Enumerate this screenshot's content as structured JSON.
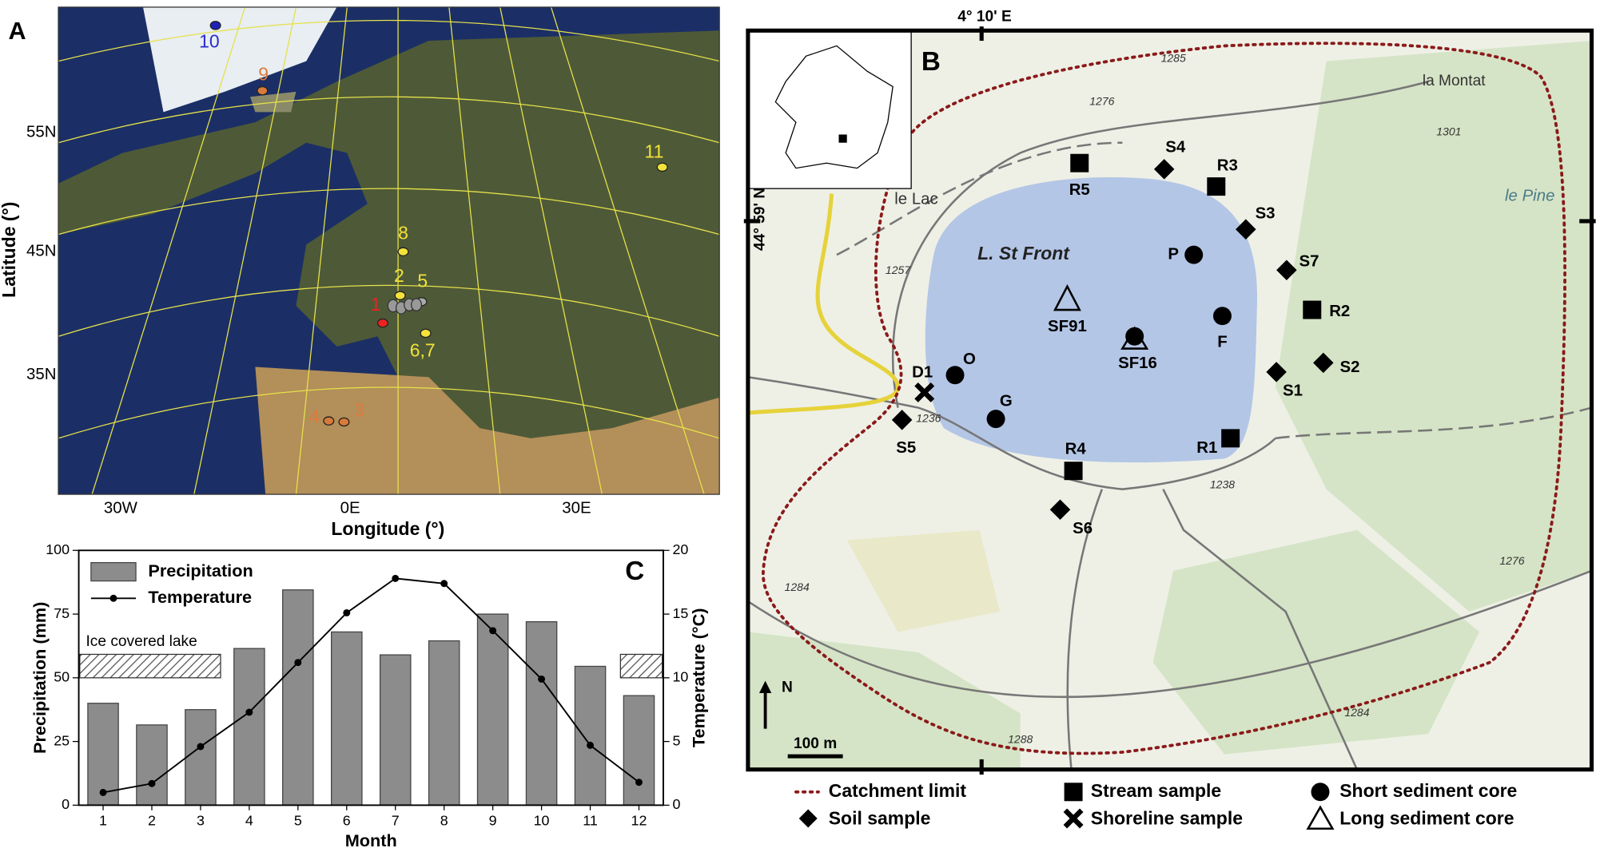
{
  "chart_data": {
    "type": "bar",
    "panel_label": "C",
    "categories": [
      "1",
      "2",
      "3",
      "4",
      "5",
      "6",
      "7",
      "8",
      "9",
      "10",
      "11",
      "12"
    ],
    "x_label": "Month",
    "y_label": "Precipitation (mm)",
    "y2_label": "Temperature (°C)",
    "ylim": [
      0,
      100
    ],
    "yticks": [
      0,
      25,
      50,
      75,
      100
    ],
    "y2lim": [
      0,
      20
    ],
    "y2ticks": [
      0,
      5,
      10,
      15,
      20
    ],
    "annotation": "Ice covered lake",
    "legend": "upper left",
    "series": [
      {
        "name": "Precipitation",
        "type": "bar",
        "color": "#8c8c8c",
        "values": [
          40,
          31.5,
          37.5,
          61.5,
          84.5,
          68,
          59,
          64.5,
          75,
          72,
          54.5,
          43
        ]
      },
      {
        "name": "Temperature",
        "type": "line",
        "axis": "y2",
        "color": "#000000",
        "values": [
          1,
          1.7,
          4.6,
          7.3,
          11.2,
          15.1,
          17.8,
          17.4,
          13.7,
          9.9,
          4.7,
          1.8
        ]
      }
    ]
  },
  "map_a": {
    "panel_label": "A",
    "x_label": "Longitude (°)",
    "y_label": "Latitude (°)",
    "lat_labels": [
      "55N",
      "45N",
      "35N"
    ],
    "lon_labels": [
      "30W",
      "0E",
      "30E"
    ],
    "site_labels": [
      "10",
      "9",
      "11",
      "8",
      "2",
      "5",
      "1",
      "6,7",
      "4",
      "3"
    ]
  },
  "map_b": {
    "panel_label": "B",
    "longitude": "4° 10' E",
    "latitude": "44° 59' N",
    "lake": "L. St Front",
    "places": [
      "le Lac",
      "la Montat",
      "le Pine"
    ],
    "elevations": [
      "1285",
      "1276",
      "1301",
      "1257",
      "1236",
      "1238",
      "1276",
      "1284",
      "1288",
      "1284"
    ],
    "scale": "100 m",
    "north": "N",
    "samples": [
      "R5",
      "S4",
      "R3",
      "S3",
      "P",
      "S7",
      "R2",
      "F",
      "SF91",
      "SF16",
      "O",
      "D1",
      "G",
      "S2",
      "S1",
      "S5",
      "R1",
      "R4",
      "S6"
    ],
    "legend": [
      "Catchment limit",
      "Soil sample",
      "Stream sample",
      "Shoreline sample",
      "Short sediment core",
      "Long sediment core"
    ]
  }
}
